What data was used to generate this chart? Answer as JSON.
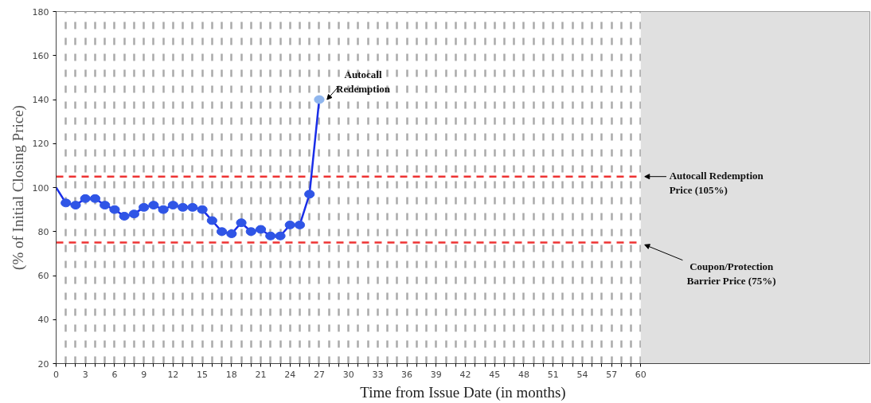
{
  "chart_data": {
    "type": "line",
    "xlabel": "Time from Issue Date (in months)",
    "ylabel": "(% of Initial Closing Price)",
    "xlim": [
      0,
      83.5
    ],
    "ylim": [
      20,
      180
    ],
    "yticks": [
      20,
      40,
      60,
      80,
      100,
      120,
      140,
      160,
      180
    ],
    "xticks": [
      0,
      {
        "value": 1,
        "label": null
      },
      {
        "value": 2,
        "label": null
      },
      3,
      {
        "value": 4,
        "label": null
      },
      {
        "value": 5,
        "label": null
      },
      6,
      {
        "value": 7,
        "label": null
      },
      {
        "value": 8,
        "label": null
      },
      9,
      {
        "value": 10,
        "label": null
      },
      {
        "value": 11,
        "label": null
      },
      12,
      {
        "value": 13,
        "label": null
      },
      {
        "value": 14,
        "label": null
      },
      15,
      {
        "value": 16,
        "label": null
      },
      {
        "value": 17,
        "label": null
      },
      18,
      {
        "value": 19,
        "label": null
      },
      {
        "value": 20,
        "label": null
      },
      21,
      {
        "value": 22,
        "label": null
      },
      {
        "value": 23,
        "label": null
      },
      24,
      {
        "value": 25,
        "label": null
      },
      {
        "value": 26,
        "label": null
      },
      27,
      {
        "value": 28,
        "label": null
      },
      {
        "value": 29,
        "label": null
      },
      30,
      {
        "value": 31,
        "label": null
      },
      {
        "value": 32,
        "label": null
      },
      33,
      {
        "value": 34,
        "label": null
      },
      {
        "value": 35,
        "label": null
      },
      36,
      {
        "value": 37,
        "label": null
      },
      {
        "value": 38,
        "label": null
      },
      39,
      {
        "value": 40,
        "label": null
      },
      {
        "value": 41,
        "label": null
      },
      42,
      {
        "value": 43,
        "label": null
      },
      {
        "value": 44,
        "label": null
      },
      45,
      {
        "value": 46,
        "label": null
      },
      {
        "value": 47,
        "label": null
      },
      48,
      {
        "value": 49,
        "label": null
      },
      {
        "value": 50,
        "label": null
      },
      51,
      {
        "value": 52,
        "label": null
      },
      {
        "value": 53,
        "label": null
      },
      54,
      {
        "value": 55,
        "label": null
      },
      {
        "value": 56,
        "label": null
      },
      57,
      {
        "value": 58,
        "label": null
      },
      {
        "value": 59,
        "label": null
      },
      60
    ],
    "grid": "x",
    "line_style": "solid",
    "series": [
      {
        "type": "line",
        "color": "#1a2ee8",
        "marker": "none",
        "x": [
          0,
          1,
          2,
          3,
          4,
          5,
          6,
          7,
          8,
          9,
          10,
          11,
          12,
          13,
          14,
          15,
          16,
          17,
          18,
          19,
          20,
          21,
          22,
          23,
          24,
          25,
          26,
          27
        ],
        "values": [
          100,
          93,
          92,
          95,
          95,
          92,
          90,
          87,
          88,
          91,
          92,
          90,
          92,
          91,
          91,
          90,
          85,
          80,
          79,
          84,
          80,
          81,
          78,
          78,
          83,
          83,
          97,
          140
        ]
      },
      {
        "type": "scatter",
        "color": "#2f55e6",
        "marker": "circle",
        "x": [
          1,
          2,
          3,
          4,
          5,
          6,
          7,
          8,
          9,
          10,
          11,
          12,
          13,
          14,
          15,
          16,
          17,
          18,
          19,
          20,
          21,
          22,
          23,
          24,
          25,
          26
        ],
        "values": [
          93,
          92,
          95,
          95,
          92,
          90,
          87,
          88,
          91,
          92,
          90,
          92,
          91,
          91,
          90,
          85,
          80,
          79,
          84,
          80,
          81,
          78,
          78,
          83,
          83,
          97
        ]
      },
      {
        "type": "scatter",
        "color": "#8fb6ee",
        "marker": "circle",
        "x": [
          27
        ],
        "values": [
          140
        ]
      }
    ],
    "ref_lines": [
      {
        "axis": "y",
        "value": 105,
        "label": "Autocall Redemption\nPrice (105%)",
        "color": "#ee3333",
        "line_style": "dashed"
      },
      {
        "axis": "y",
        "value": 75,
        "label": "Coupon/Protection\nBarrier Price (75%)",
        "color": "#ee3333",
        "line_style": "dashed"
      }
    ],
    "bands": [
      {
        "axis": "x",
        "from": 60,
        "to": 83.5,
        "color": "#e0e0e0"
      }
    ],
    "annotations": [
      {
        "text": "Autocall\nRedemption",
        "x": 27,
        "y": 140
      }
    ]
  }
}
